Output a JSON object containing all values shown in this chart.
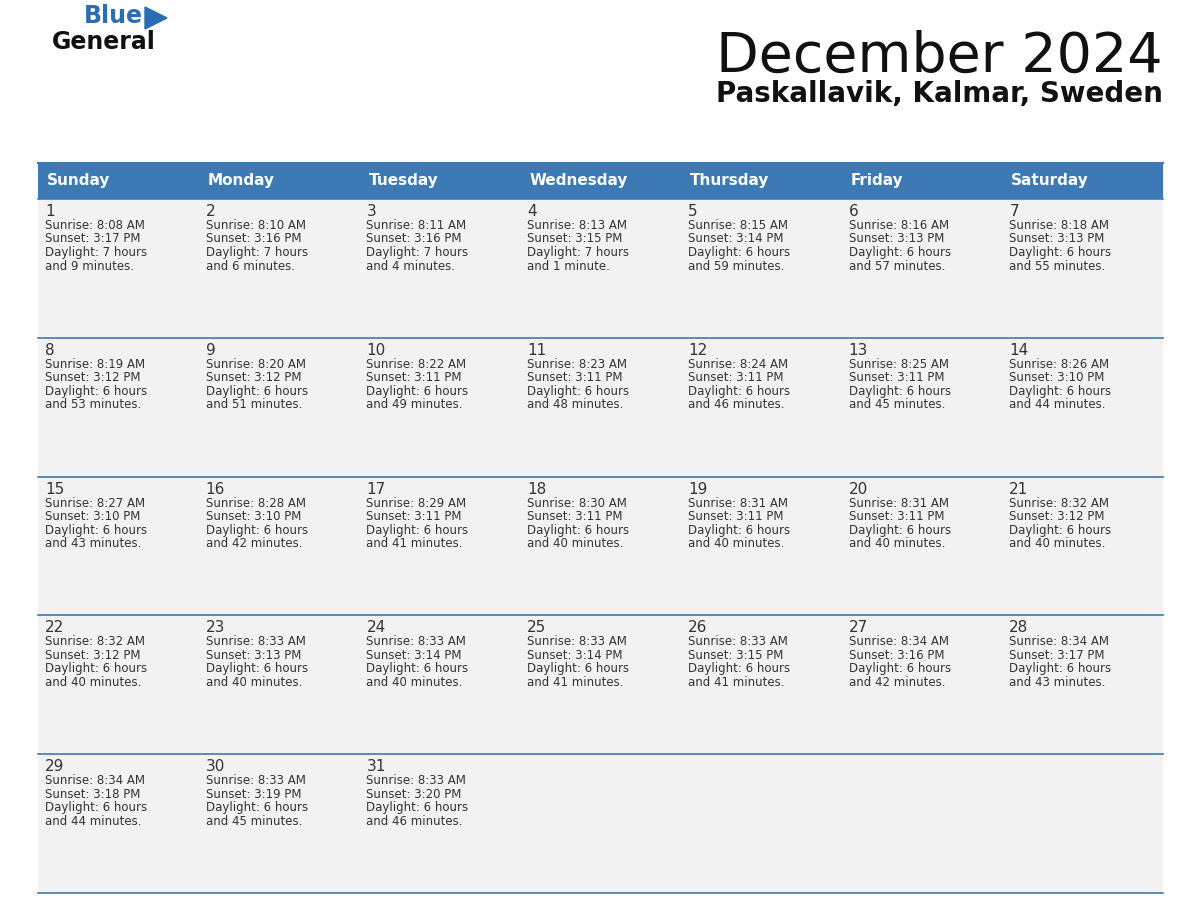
{
  "title": "December 2024",
  "subtitle": "Paskallavik, Kalmar, Sweden",
  "header_color": "#3d7ab5",
  "header_text_color": "#ffffff",
  "bg_color": "#ffffff",
  "cell_bg": "#f2f2f2",
  "border_color": "#3d7ab5",
  "text_color": "#333333",
  "days_of_week": [
    "Sunday",
    "Monday",
    "Tuesday",
    "Wednesday",
    "Thursday",
    "Friday",
    "Saturday"
  ],
  "weeks": [
    [
      {
        "day": "1",
        "sunrise": "8:08 AM",
        "sunset": "3:17 PM",
        "daylight_h": "7 hours",
        "daylight_m": "and 9 minutes."
      },
      {
        "day": "2",
        "sunrise": "8:10 AM",
        "sunset": "3:16 PM",
        "daylight_h": "7 hours",
        "daylight_m": "and 6 minutes."
      },
      {
        "day": "3",
        "sunrise": "8:11 AM",
        "sunset": "3:16 PM",
        "daylight_h": "7 hours",
        "daylight_m": "and 4 minutes."
      },
      {
        "day": "4",
        "sunrise": "8:13 AM",
        "sunset": "3:15 PM",
        "daylight_h": "7 hours",
        "daylight_m": "and 1 minute."
      },
      {
        "day": "5",
        "sunrise": "8:15 AM",
        "sunset": "3:14 PM",
        "daylight_h": "6 hours",
        "daylight_m": "and 59 minutes."
      },
      {
        "day": "6",
        "sunrise": "8:16 AM",
        "sunset": "3:13 PM",
        "daylight_h": "6 hours",
        "daylight_m": "and 57 minutes."
      },
      {
        "day": "7",
        "sunrise": "8:18 AM",
        "sunset": "3:13 PM",
        "daylight_h": "6 hours",
        "daylight_m": "and 55 minutes."
      }
    ],
    [
      {
        "day": "8",
        "sunrise": "8:19 AM",
        "sunset": "3:12 PM",
        "daylight_h": "6 hours",
        "daylight_m": "and 53 minutes."
      },
      {
        "day": "9",
        "sunrise": "8:20 AM",
        "sunset": "3:12 PM",
        "daylight_h": "6 hours",
        "daylight_m": "and 51 minutes."
      },
      {
        "day": "10",
        "sunrise": "8:22 AM",
        "sunset": "3:11 PM",
        "daylight_h": "6 hours",
        "daylight_m": "and 49 minutes."
      },
      {
        "day": "11",
        "sunrise": "8:23 AM",
        "sunset": "3:11 PM",
        "daylight_h": "6 hours",
        "daylight_m": "and 48 minutes."
      },
      {
        "day": "12",
        "sunrise": "8:24 AM",
        "sunset": "3:11 PM",
        "daylight_h": "6 hours",
        "daylight_m": "and 46 minutes."
      },
      {
        "day": "13",
        "sunrise": "8:25 AM",
        "sunset": "3:11 PM",
        "daylight_h": "6 hours",
        "daylight_m": "and 45 minutes."
      },
      {
        "day": "14",
        "sunrise": "8:26 AM",
        "sunset": "3:10 PM",
        "daylight_h": "6 hours",
        "daylight_m": "and 44 minutes."
      }
    ],
    [
      {
        "day": "15",
        "sunrise": "8:27 AM",
        "sunset": "3:10 PM",
        "daylight_h": "6 hours",
        "daylight_m": "and 43 minutes."
      },
      {
        "day": "16",
        "sunrise": "8:28 AM",
        "sunset": "3:10 PM",
        "daylight_h": "6 hours",
        "daylight_m": "and 42 minutes."
      },
      {
        "day": "17",
        "sunrise": "8:29 AM",
        "sunset": "3:11 PM",
        "daylight_h": "6 hours",
        "daylight_m": "and 41 minutes."
      },
      {
        "day": "18",
        "sunrise": "8:30 AM",
        "sunset": "3:11 PM",
        "daylight_h": "6 hours",
        "daylight_m": "and 40 minutes."
      },
      {
        "day": "19",
        "sunrise": "8:31 AM",
        "sunset": "3:11 PM",
        "daylight_h": "6 hours",
        "daylight_m": "and 40 minutes."
      },
      {
        "day": "20",
        "sunrise": "8:31 AM",
        "sunset": "3:11 PM",
        "daylight_h": "6 hours",
        "daylight_m": "and 40 minutes."
      },
      {
        "day": "21",
        "sunrise": "8:32 AM",
        "sunset": "3:12 PM",
        "daylight_h": "6 hours",
        "daylight_m": "and 40 minutes."
      }
    ],
    [
      {
        "day": "22",
        "sunrise": "8:32 AM",
        "sunset": "3:12 PM",
        "daylight_h": "6 hours",
        "daylight_m": "and 40 minutes."
      },
      {
        "day": "23",
        "sunrise": "8:33 AM",
        "sunset": "3:13 PM",
        "daylight_h": "6 hours",
        "daylight_m": "and 40 minutes."
      },
      {
        "day": "24",
        "sunrise": "8:33 AM",
        "sunset": "3:14 PM",
        "daylight_h": "6 hours",
        "daylight_m": "and 40 minutes."
      },
      {
        "day": "25",
        "sunrise": "8:33 AM",
        "sunset": "3:14 PM",
        "daylight_h": "6 hours",
        "daylight_m": "and 41 minutes."
      },
      {
        "day": "26",
        "sunrise": "8:33 AM",
        "sunset": "3:15 PM",
        "daylight_h": "6 hours",
        "daylight_m": "and 41 minutes."
      },
      {
        "day": "27",
        "sunrise": "8:34 AM",
        "sunset": "3:16 PM",
        "daylight_h": "6 hours",
        "daylight_m": "and 42 minutes."
      },
      {
        "day": "28",
        "sunrise": "8:34 AM",
        "sunset": "3:17 PM",
        "daylight_h": "6 hours",
        "daylight_m": "and 43 minutes."
      }
    ],
    [
      {
        "day": "29",
        "sunrise": "8:34 AM",
        "sunset": "3:18 PM",
        "daylight_h": "6 hours",
        "daylight_m": "and 44 minutes."
      },
      {
        "day": "30",
        "sunrise": "8:33 AM",
        "sunset": "3:19 PM",
        "daylight_h": "6 hours",
        "daylight_m": "and 45 minutes."
      },
      {
        "day": "31",
        "sunrise": "8:33 AM",
        "sunset": "3:20 PM",
        "daylight_h": "6 hours",
        "daylight_m": "and 46 minutes."
      },
      null,
      null,
      null,
      null
    ]
  ],
  "logo_color_general": "#111111",
  "logo_color_blue": "#2a6db5",
  "logo_triangle_color": "#2a6db5",
  "title_fontsize": 40,
  "subtitle_fontsize": 20,
  "header_fontsize": 11,
  "day_num_fontsize": 11,
  "cell_text_fontsize": 8.5
}
